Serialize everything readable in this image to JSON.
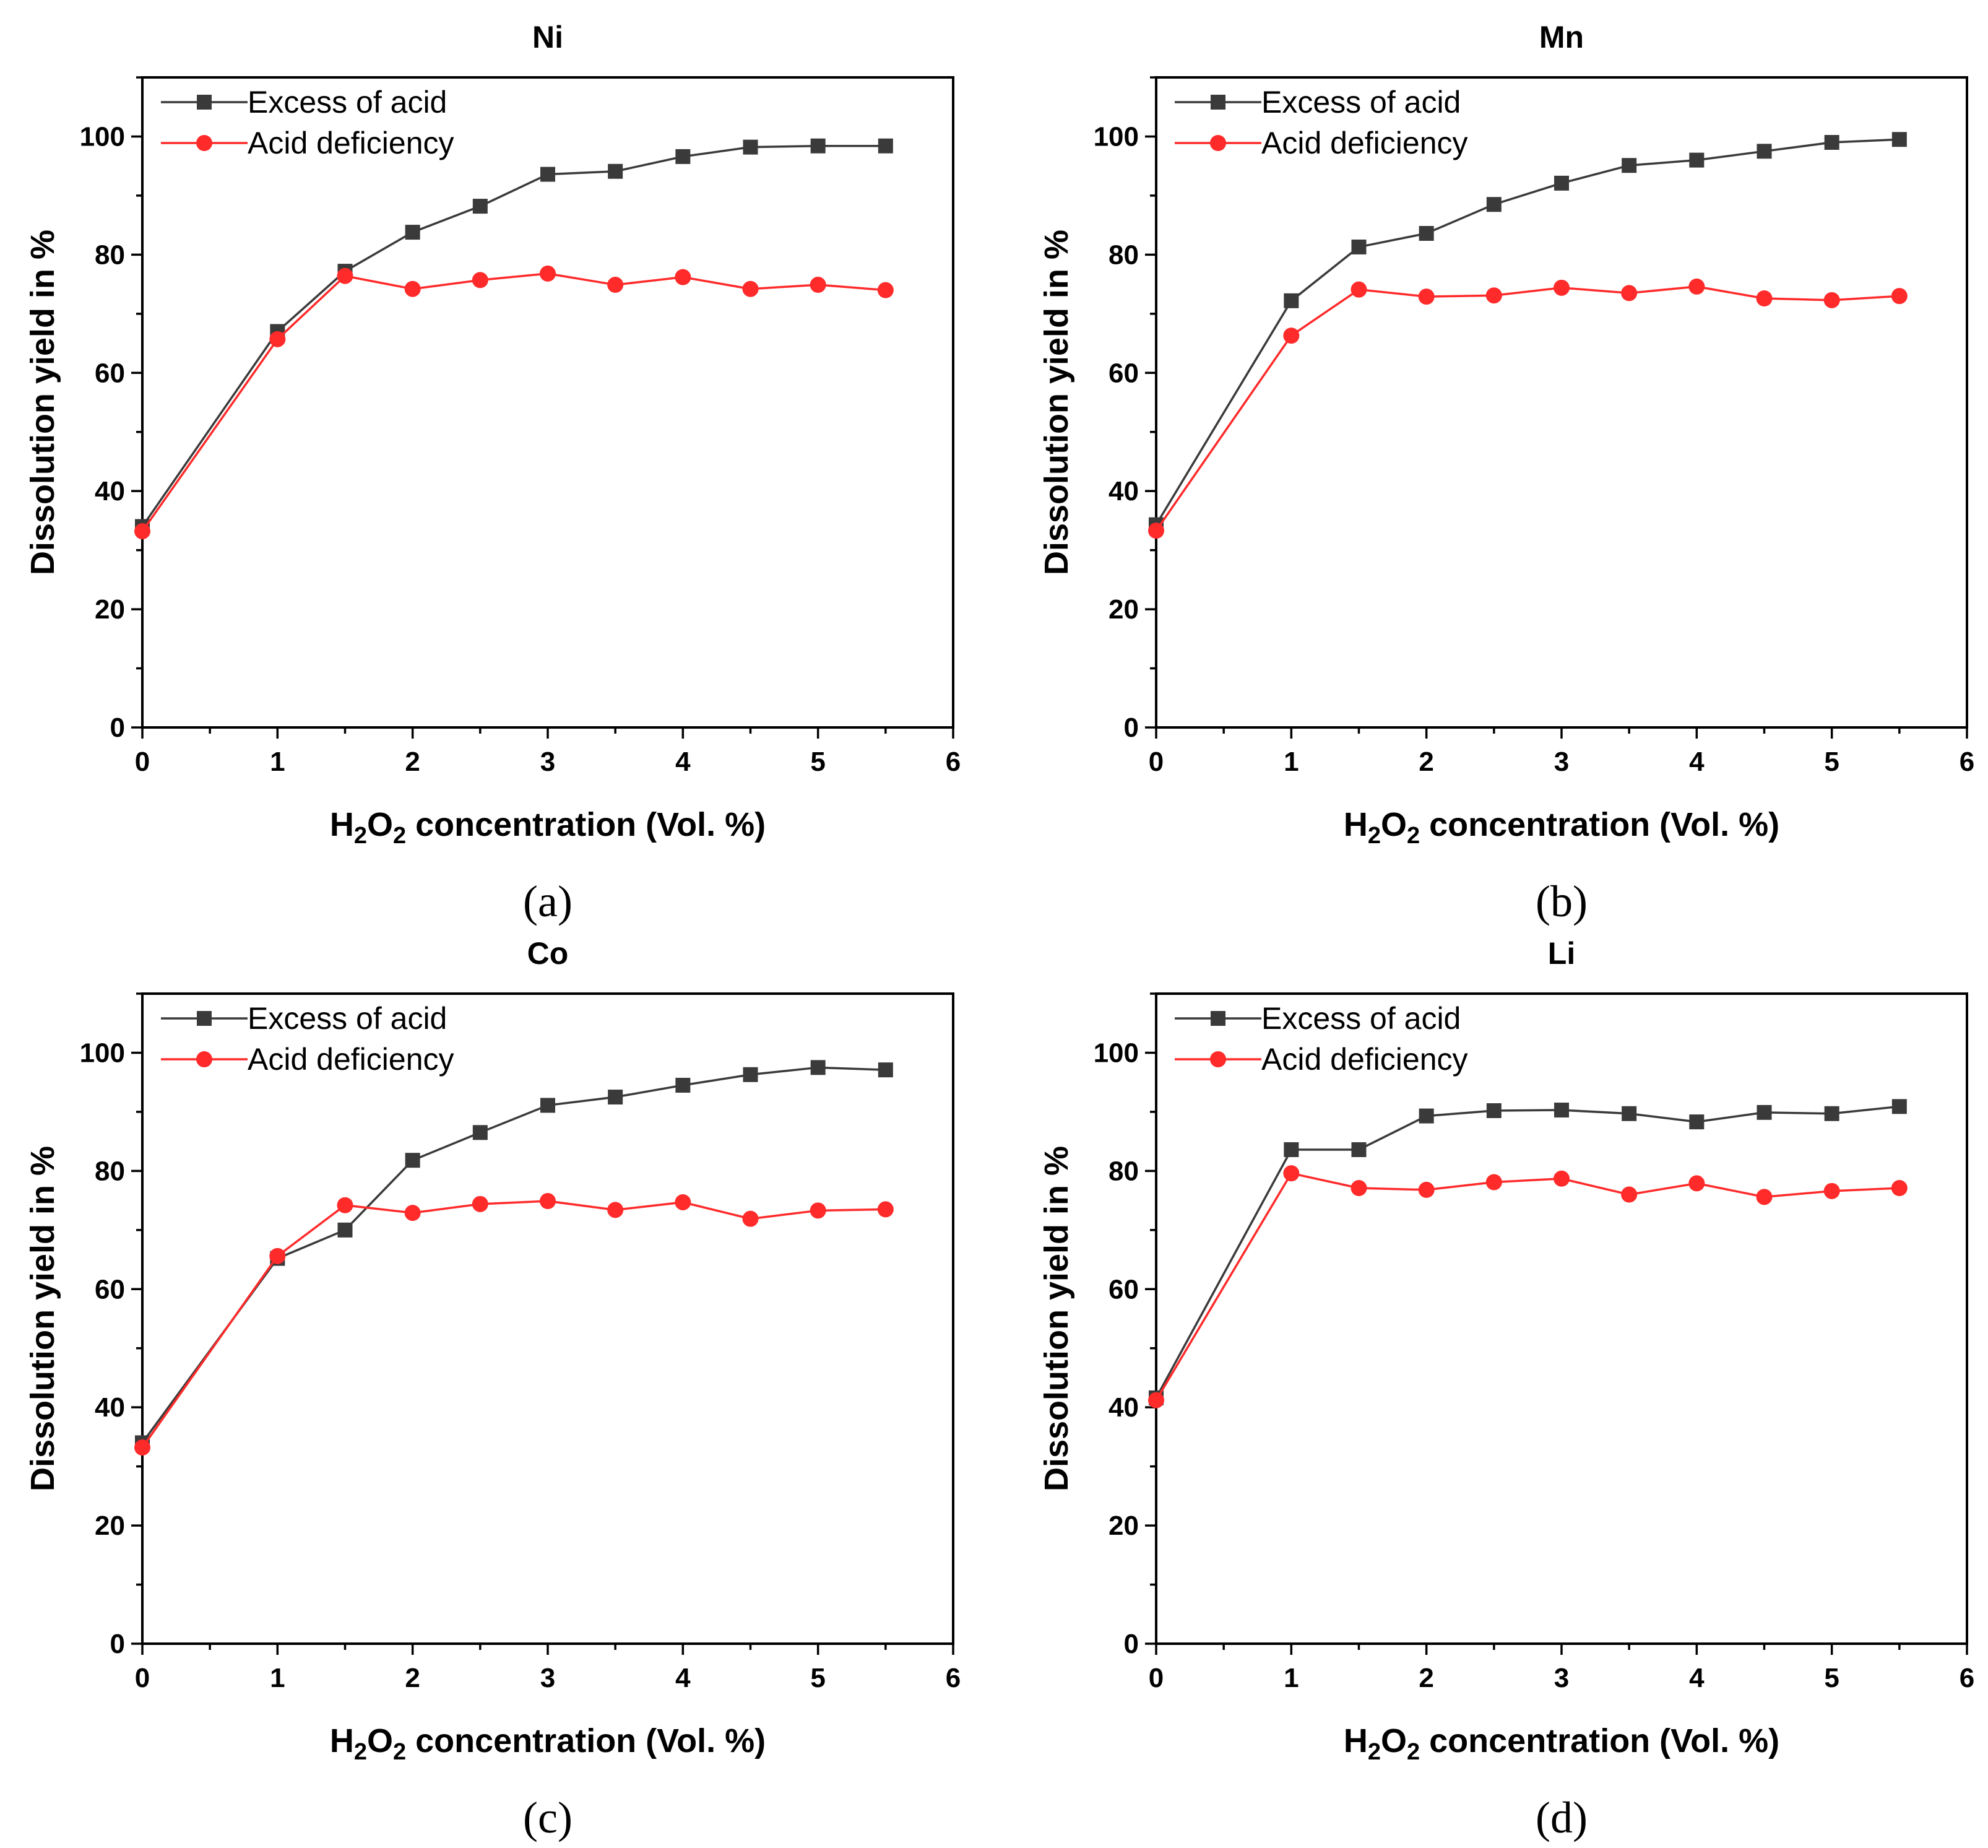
{
  "colors": {
    "excess": "#3a3a3a",
    "deficiency": "#ff2a2a",
    "axis": "#000000"
  },
  "chart_data": [
    {
      "type": "line",
      "title": "Ni",
      "panel_label": "(a)",
      "xlabel": {
        "main": "H",
        "sub1": "2",
        "mid": "O",
        "sub2": "2",
        "tail": " concentration (Vol. %)"
      },
      "ylabel": "Dissolution yield in %",
      "xlim": [
        0,
        6
      ],
      "ylim": [
        0,
        110
      ],
      "xticks": [
        "0",
        "1",
        "2",
        "3",
        "4",
        "5",
        "6"
      ],
      "yticks": [
        "0",
        "20",
        "40",
        "60",
        "80",
        "100"
      ],
      "x": [
        0,
        1,
        1.5,
        2,
        2.5,
        3,
        3.5,
        4,
        4.5,
        5,
        5.5
      ],
      "legend_position": "top-left",
      "series": [
        {
          "name": "Excess of acid",
          "marker": "square",
          "values": [
            34,
            67,
            77.2,
            83.8,
            88.2,
            93.6,
            94.1,
            96.6,
            98.2,
            98.4,
            98.4
          ]
        },
        {
          "name": "Acid deficiency",
          "marker": "circle",
          "values": [
            33.2,
            65.7,
            76.4,
            74.2,
            75.7,
            76.8,
            74.9,
            76.2,
            74.2,
            74.9,
            74
          ]
        }
      ]
    },
    {
      "type": "line",
      "title": "Mn",
      "panel_label": "(b)",
      "xlabel": {
        "main": "H",
        "sub1": "2",
        "mid": "O",
        "sub2": "2",
        "tail": " concentration (Vol. %)"
      },
      "ylabel": "Dissolution yield in %",
      "xlim": [
        0,
        6
      ],
      "ylim": [
        0,
        110
      ],
      "xticks": [
        "0",
        "1",
        "2",
        "3",
        "4",
        "5",
        "6"
      ],
      "yticks": [
        "0",
        "20",
        "40",
        "60",
        "80",
        "100"
      ],
      "x": [
        0,
        1,
        1.5,
        2,
        2.5,
        3,
        3.5,
        4,
        4.5,
        5,
        5.5
      ],
      "legend_position": "top-left",
      "series": [
        {
          "name": "Excess of acid",
          "marker": "square",
          "values": [
            34.3,
            72.2,
            81.3,
            83.6,
            88.5,
            92.1,
            95.1,
            96,
            97.5,
            99,
            99.5
          ]
        },
        {
          "name": "Acid deficiency",
          "marker": "circle",
          "values": [
            33.3,
            66.3,
            74.1,
            72.9,
            73.1,
            74.4,
            73.5,
            74.6,
            72.6,
            72.3,
            73
          ]
        }
      ]
    },
    {
      "type": "line",
      "title": "Co",
      "panel_label": "(c)",
      "xlabel": {
        "main": "H",
        "sub1": "2",
        "mid": "O",
        "sub2": "2",
        "tail": " concentration (Vol. %)"
      },
      "ylabel": "Dissolution yield in %",
      "xlim": [
        0,
        6
      ],
      "ylim": [
        0,
        110
      ],
      "xticks": [
        "0",
        "1",
        "2",
        "3",
        "4",
        "5",
        "6"
      ],
      "yticks": [
        "0",
        "20",
        "40",
        "60",
        "80",
        "100"
      ],
      "x": [
        0,
        1,
        1.5,
        2,
        2.5,
        3,
        3.5,
        4,
        4.5,
        5,
        5.5
      ],
      "legend_position": "top-left",
      "series": [
        {
          "name": "Excess of acid",
          "marker": "square",
          "values": [
            34,
            65.2,
            70,
            81.8,
            86.5,
            91.1,
            92.5,
            94.5,
            96.3,
            97.5,
            97.1
          ]
        },
        {
          "name": "Acid deficiency",
          "marker": "circle",
          "values": [
            33.2,
            65.6,
            74.2,
            72.9,
            74.4,
            74.9,
            73.4,
            74.7,
            71.9,
            73.3,
            73.5
          ]
        }
      ]
    },
    {
      "type": "line",
      "title": "Li",
      "panel_label": "(d)",
      "xlabel": {
        "main": "H",
        "sub1": "2",
        "mid": "O",
        "sub2": "2",
        "tail": " concentration (Vol. %)"
      },
      "ylabel": "Dissolution yield in %",
      "xlim": [
        0,
        6
      ],
      "ylim": [
        0,
        110
      ],
      "xticks": [
        "0",
        "1",
        "2",
        "3",
        "4",
        "5",
        "6"
      ],
      "yticks": [
        "0",
        "20",
        "40",
        "60",
        "80",
        "100"
      ],
      "x": [
        0,
        1,
        1.5,
        2,
        2.5,
        3,
        3.5,
        4,
        4.5,
        5,
        5.5
      ],
      "legend_position": "top-left",
      "series": [
        {
          "name": "Excess of acid",
          "marker": "square",
          "values": [
            41.6,
            83.6,
            83.6,
            89.3,
            90.2,
            90.3,
            89.7,
            88.3,
            89.9,
            89.7,
            90.9
          ]
        },
        {
          "name": "Acid deficiency",
          "marker": "circle",
          "values": [
            41.2,
            79.6,
            77.1,
            76.8,
            78.1,
            78.7,
            76,
            77.9,
            75.6,
            76.6,
            77.1
          ]
        }
      ]
    }
  ]
}
